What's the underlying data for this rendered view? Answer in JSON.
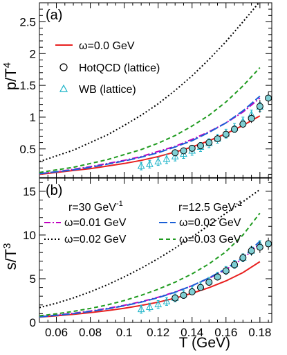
{
  "chart_data": [
    {
      "id": "a",
      "type": "line",
      "panel_label": "(a)",
      "ylabel": "p/T",
      "ylabel_sup": "4",
      "xlabel": "",
      "xlim": [
        0.05,
        0.187
      ],
      "ylim": [
        0.05,
        2.8
      ],
      "yticks": [
        "0.5",
        "1",
        "1.5",
        "2",
        "2.5"
      ],
      "ytick_values": [
        0.5,
        1.0,
        1.5,
        2.0,
        2.5
      ],
      "legend": {
        "position": "top-left",
        "entries": [
          {
            "label": "ω=0.0 GeV",
            "kind": "line",
            "series": "omega0"
          },
          {
            "label": "HotQCD (lattice)",
            "kind": "circle"
          },
          {
            "label": "WB (lattice)",
            "kind": "triangle"
          }
        ]
      },
      "series": [
        {
          "key": "omega0",
          "color": "#e8201f",
          "dash": "solid",
          "x": [
            0.05,
            0.06,
            0.07,
            0.08,
            0.09,
            0.1,
            0.11,
            0.12,
            0.13,
            0.14,
            0.15,
            0.16,
            0.17,
            0.18
          ],
          "y": [
            0.1,
            0.13,
            0.16,
            0.19,
            0.23,
            0.27,
            0.32,
            0.38,
            0.45,
            0.53,
            0.63,
            0.74,
            0.87,
            1.02
          ]
        },
        {
          "key": "r30w001",
          "color": "#c000c0",
          "dash": "dashdot",
          "x": [
            0.05,
            0.06,
            0.07,
            0.08,
            0.09,
            0.1,
            0.11,
            0.12,
            0.13,
            0.14,
            0.15,
            0.16,
            0.17,
            0.18
          ],
          "y": [
            0.11,
            0.14,
            0.18,
            0.22,
            0.27,
            0.32,
            0.38,
            0.46,
            0.54,
            0.65,
            0.77,
            0.91,
            1.08,
            1.3
          ]
        },
        {
          "key": "r30w002",
          "color": "#000000",
          "dash": "dot",
          "x": [
            0.05,
            0.06,
            0.07,
            0.08,
            0.09,
            0.1,
            0.11,
            0.12,
            0.13,
            0.14,
            0.15,
            0.16,
            0.17,
            0.18
          ],
          "y": [
            0.3,
            0.39,
            0.48,
            0.6,
            0.72,
            0.87,
            1.03,
            1.21,
            1.42,
            1.65,
            1.91,
            2.19,
            2.5,
            2.82
          ]
        },
        {
          "key": "r125w002",
          "color": "#1a5fd6",
          "dash": "longdash",
          "x": [
            0.05,
            0.06,
            0.07,
            0.08,
            0.09,
            0.1,
            0.11,
            0.12,
            0.13,
            0.14,
            0.15,
            0.16,
            0.17,
            0.18
          ],
          "y": [
            0.11,
            0.14,
            0.17,
            0.21,
            0.26,
            0.31,
            0.37,
            0.44,
            0.53,
            0.63,
            0.76,
            0.91,
            1.1,
            1.33
          ]
        },
        {
          "key": "r125w003",
          "color": "#1f9b1f",
          "dash": "dash",
          "x": [
            0.05,
            0.06,
            0.07,
            0.08,
            0.09,
            0.1,
            0.11,
            0.12,
            0.13,
            0.14,
            0.15,
            0.16,
            0.17,
            0.18
          ],
          "y": [
            0.13,
            0.17,
            0.21,
            0.27,
            0.33,
            0.41,
            0.49,
            0.59,
            0.71,
            0.86,
            1.03,
            1.24,
            1.49,
            1.78
          ]
        }
      ],
      "hotqcd": {
        "x": [
          0.13,
          0.135,
          0.14,
          0.145,
          0.15,
          0.155,
          0.16,
          0.165,
          0.17,
          0.175,
          0.18,
          0.185
        ],
        "y": [
          0.44,
          0.47,
          0.51,
          0.55,
          0.6,
          0.66,
          0.73,
          0.81,
          0.89,
          0.98,
          1.17,
          1.3
        ],
        "err": [
          0.05,
          0.05,
          0.05,
          0.05,
          0.05,
          0.05,
          0.05,
          0.05,
          0.06,
          0.07,
          0.1,
          0.1
        ]
      },
      "wb": {
        "x": [
          0.11,
          0.115,
          0.12,
          0.125,
          0.13,
          0.135,
          0.14,
          0.145,
          0.15,
          0.155,
          0.16,
          0.165,
          0.17,
          0.175,
          0.18
        ],
        "y": [
          0.23,
          0.26,
          0.3,
          0.34,
          0.38,
          0.42,
          0.47,
          0.53,
          0.59,
          0.66,
          0.74,
          0.83,
          0.93,
          1.04,
          1.16
        ],
        "err": [
          0.06,
          0.06,
          0.06,
          0.07,
          0.07,
          0.07,
          0.07,
          0.07,
          0.07,
          0.07,
          0.07,
          0.07,
          0.07,
          0.07,
          0.07
        ]
      }
    },
    {
      "id": "b",
      "type": "line",
      "panel_label": "(b)",
      "ylabel": "s/T",
      "ylabel_sup": "3",
      "xlabel": "T (GeV)",
      "xlim": [
        0.05,
        0.187
      ],
      "ylim": [
        0,
        16.5
      ],
      "xticks": [
        "0.06",
        "0.08",
        "0.1",
        "0.12",
        "0.14",
        "0.16",
        "0.18"
      ],
      "xtick_values": [
        0.06,
        0.08,
        0.1,
        0.12,
        0.14,
        0.16,
        0.18
      ],
      "yticks": [
        "0",
        "5",
        "10",
        "15"
      ],
      "ytick_values": [
        0,
        5,
        10,
        15
      ],
      "legend": {
        "position": "top",
        "headers": [
          {
            "text": "r=30 GeV",
            "sup": "-1"
          },
          {
            "text": "r=12.5 GeV",
            "sup": "-1"
          }
        ],
        "entries": [
          {
            "label": "ω=0.01 GeV",
            "series": "r30w001"
          },
          {
            "label": "ω=0.02 GeV",
            "series": "r125w002"
          },
          {
            "label": "ω=0.02 GeV",
            "series": "r30w002"
          },
          {
            "label": "ω=0.03 GeV",
            "series": "r125w003"
          }
        ]
      },
      "series": [
        {
          "key": "omega0",
          "color": "#e8201f",
          "dash": "solid",
          "x": [
            0.05,
            0.06,
            0.07,
            0.08,
            0.09,
            0.1,
            0.11,
            0.12,
            0.13,
            0.14,
            0.15,
            0.16,
            0.17,
            0.18
          ],
          "y": [
            0.6,
            0.75,
            0.92,
            1.12,
            1.35,
            1.62,
            1.94,
            2.32,
            2.78,
            3.33,
            3.98,
            4.75,
            5.7,
            6.95
          ]
        },
        {
          "key": "r30w001",
          "color": "#c000c0",
          "dash": "dashdot",
          "x": [
            0.05,
            0.06,
            0.07,
            0.08,
            0.09,
            0.1,
            0.11,
            0.12,
            0.13,
            0.14,
            0.15,
            0.16,
            0.17,
            0.18
          ],
          "y": [
            0.66,
            0.84,
            1.05,
            1.3,
            1.6,
            1.95,
            2.37,
            2.88,
            3.48,
            4.2,
            5.05,
            6.05,
            7.3,
            9.0
          ]
        },
        {
          "key": "r30w002",
          "color": "#000000",
          "dash": "dot",
          "x": [
            0.05,
            0.06,
            0.07,
            0.08,
            0.09,
            0.1,
            0.11,
            0.12,
            0.13,
            0.14,
            0.15,
            0.16,
            0.17,
            0.18
          ],
          "y": [
            1.7,
            2.2,
            2.8,
            3.5,
            4.3,
            5.2,
            6.2,
            7.3,
            8.5,
            9.8,
            11.1,
            12.5,
            13.8,
            15.2
          ]
        },
        {
          "key": "r125w002",
          "color": "#1a5fd6",
          "dash": "longdash",
          "x": [
            0.05,
            0.06,
            0.07,
            0.08,
            0.09,
            0.1,
            0.11,
            0.12,
            0.13,
            0.14,
            0.15,
            0.16,
            0.17,
            0.18
          ],
          "y": [
            0.63,
            0.8,
            1.0,
            1.25,
            1.55,
            1.9,
            2.32,
            2.83,
            3.45,
            4.2,
            5.1,
            6.15,
            7.45,
            9.3
          ]
        },
        {
          "key": "r125w003",
          "color": "#1f9b1f",
          "dash": "dash",
          "x": [
            0.05,
            0.06,
            0.07,
            0.08,
            0.09,
            0.1,
            0.11,
            0.12,
            0.13,
            0.14,
            0.15,
            0.16,
            0.17,
            0.18
          ],
          "y": [
            0.75,
            0.98,
            1.26,
            1.6,
            2.0,
            2.5,
            3.1,
            3.8,
            4.6,
            5.55,
            6.7,
            8.1,
            10.0,
            12.5
          ]
        }
      ],
      "hotqcd": {
        "x": [
          0.13,
          0.135,
          0.14,
          0.145,
          0.15,
          0.155,
          0.16,
          0.165,
          0.17,
          0.175,
          0.18,
          0.185
        ],
        "y": [
          2.8,
          3.1,
          3.5,
          4.0,
          4.6,
          5.2,
          5.9,
          6.6,
          7.4,
          8.2,
          8.6,
          9.0
        ],
        "err": [
          0.35,
          0.35,
          0.35,
          0.35,
          0.4,
          0.4,
          0.45,
          0.45,
          0.5,
          0.55,
          0.65,
          0.7
        ]
      },
      "wb": {
        "x": [
          0.11,
          0.115,
          0.12,
          0.125,
          0.13,
          0.135,
          0.14,
          0.145,
          0.15,
          0.155,
          0.16,
          0.165,
          0.17,
          0.175,
          0.18
        ],
        "y": [
          1.5,
          1.75,
          2.05,
          2.4,
          2.8,
          3.2,
          3.65,
          4.15,
          4.7,
          5.3,
          5.95,
          6.65,
          7.4,
          8.2,
          8.9
        ],
        "err": [
          0.45,
          0.45,
          0.45,
          0.45,
          0.45,
          0.45,
          0.45,
          0.45,
          0.45,
          0.45,
          0.45,
          0.45,
          0.45,
          0.45,
          0.45
        ]
      }
    }
  ]
}
